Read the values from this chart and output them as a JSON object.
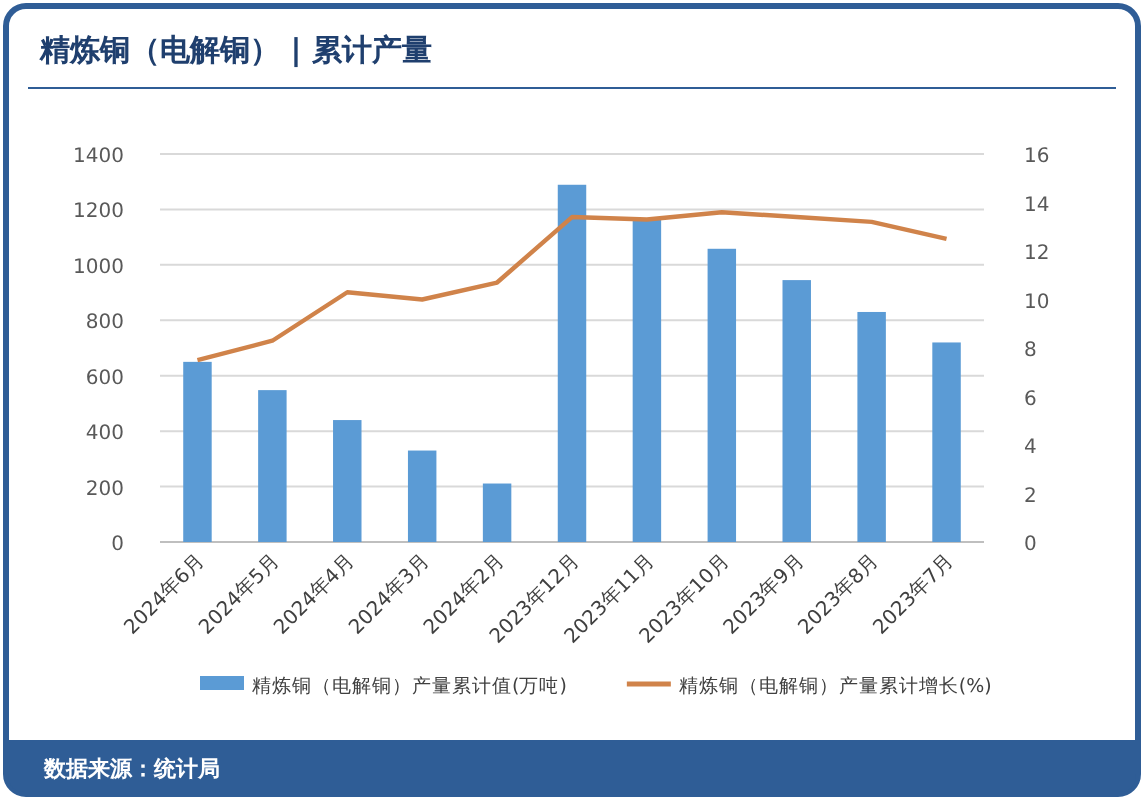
{
  "chart_data": {
    "type": "bar",
    "title": "精炼铜（电解铜） | 累计产量",
    "categories": [
      "2024年6月",
      "2024年5月",
      "2024年4月",
      "2024年3月",
      "2024年2月",
      "2023年12月",
      "2023年11月",
      "2023年10月",
      "2023年9月",
      "2023年8月",
      "2023年7月"
    ],
    "series": [
      {
        "name": "精炼铜（电解铜）产量累计值(万吨)",
        "color": "#5b9bd5",
        "values": [
          650,
          548,
          440,
          330,
          211,
          1289,
          1162,
          1058,
          945,
          830,
          720
        ]
      },
      {
        "name": "精炼铜（电解铜）产量累计增长(%)",
        "type": "line",
        "axis": "y2",
        "color": "#d0834a",
        "marker": "none",
        "values": [
          7.5,
          8.3,
          10.3,
          10.0,
          10.7,
          13.4,
          13.3,
          13.6,
          13.4,
          13.2,
          12.5
        ]
      }
    ],
    "ylim": [
      0,
      1400
    ],
    "yticks": [
      0,
      200,
      400,
      600,
      800,
      1000,
      1200,
      1400
    ],
    "y2lim": [
      0,
      16
    ],
    "y2ticks": [
      0,
      2,
      4,
      6,
      8,
      10,
      12,
      14,
      16
    ],
    "grid": "y",
    "legend": "bottom",
    "annotations": [
      "数据来源：统计局"
    ]
  }
}
